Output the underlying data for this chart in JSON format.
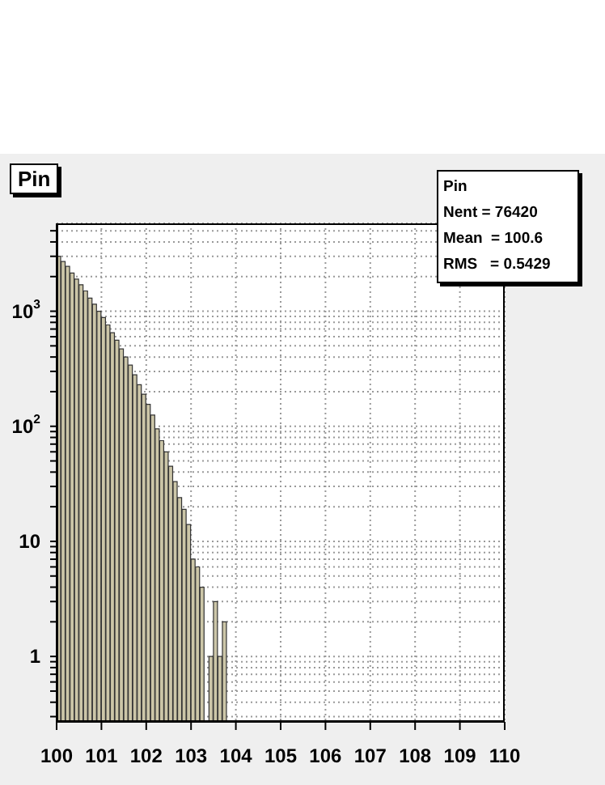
{
  "chart_data": {
    "type": "histogram",
    "title": "Pin",
    "bins": [
      100,
      100.1,
      100.2,
      100.3,
      100.4,
      100.5,
      100.6,
      100.7,
      100.8,
      100.9,
      101,
      101.1,
      101.2,
      101.3,
      101.4,
      101.5,
      101.6,
      101.7,
      101.8,
      101.9,
      102,
      102.1,
      102.2,
      102.3,
      102.4,
      102.5,
      102.6,
      102.7,
      102.8,
      102.9,
      103,
      103.1,
      103.2,
      103.3,
      103.4,
      103.5,
      103.6,
      103.7,
      103.8
    ],
    "values": [
      3000,
      2700,
      2450,
      2150,
      1900,
      1700,
      1500,
      1300,
      1150,
      1000,
      880,
      760,
      650,
      560,
      470,
      400,
      340,
      280,
      230,
      190,
      155,
      125,
      95,
      75,
      60,
      45,
      33,
      24,
      19,
      14,
      7,
      6,
      4,
      null,
      1,
      3,
      1,
      2
    ],
    "color": "#ccc6a8",
    "xlim": [
      100,
      110
    ],
    "xticks": [
      100,
      101,
      102,
      103,
      104,
      105,
      106,
      107,
      108,
      109,
      110
    ],
    "ylim": [
      0.27,
      5800
    ],
    "log": true,
    "yticks": [
      {
        "value": 0.3,
        "label": null
      },
      {
        "value": 0.4,
        "label": null
      },
      {
        "value": 0.5,
        "label": null
      },
      {
        "value": 0.6,
        "label": null
      },
      {
        "value": 0.7,
        "label": null
      },
      {
        "value": 0.8,
        "label": null
      },
      {
        "value": 0.9,
        "label": null
      },
      1,
      {
        "value": 2,
        "label": null
      },
      {
        "value": 3,
        "label": null
      },
      {
        "value": 4,
        "label": null
      },
      {
        "value": 5,
        "label": null
      },
      {
        "value": 6,
        "label": null
      },
      {
        "value": 7,
        "label": null
      },
      {
        "value": 8,
        "label": null
      },
      {
        "value": 9,
        "label": null
      },
      10,
      {
        "value": 20,
        "label": null
      },
      {
        "value": 30,
        "label": null
      },
      {
        "value": 40,
        "label": null
      },
      {
        "value": 50,
        "label": null
      },
      {
        "value": 60,
        "label": null
      },
      {
        "value": 70,
        "label": null
      },
      {
        "value": 80,
        "label": null
      },
      {
        "value": 90,
        "label": null
      },
      {
        "value": 100,
        "label": "10$^{2}$"
      },
      {
        "value": 200,
        "label": null
      },
      {
        "value": 300,
        "label": null
      },
      {
        "value": 400,
        "label": null
      },
      {
        "value": 500,
        "label": null
      },
      {
        "value": 600,
        "label": null
      },
      {
        "value": 700,
        "label": null
      },
      {
        "value": 800,
        "label": null
      },
      {
        "value": 900,
        "label": null
      },
      {
        "value": 1000,
        "label": "10$^{3}$"
      },
      {
        "value": 2000,
        "label": null
      },
      {
        "value": 3000,
        "label": null
      },
      {
        "value": 4000,
        "label": null
      },
      {
        "value": 5000,
        "label": null
      }
    ],
    "grid": true,
    "annotations": [
      "Pin",
      "Nent = 76420",
      "Mean  = 100.6",
      "RMS   = 0.5429"
    ]
  }
}
